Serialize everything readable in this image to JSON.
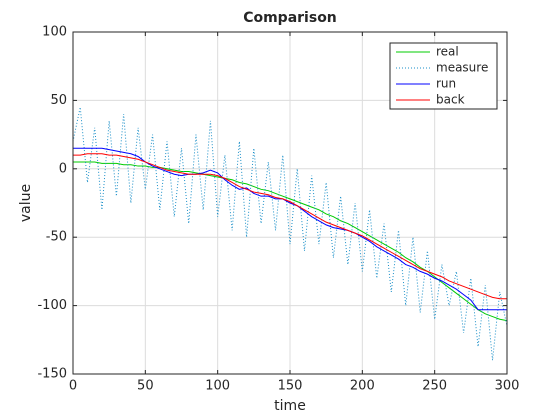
{
  "chart_data": {
    "type": "line",
    "title": "Comparison",
    "xlabel": "time",
    "ylabel": "value",
    "x": [
      0,
      5,
      10,
      15,
      20,
      25,
      30,
      35,
      40,
      45,
      50,
      55,
      60,
      65,
      70,
      75,
      80,
      85,
      90,
      95,
      100,
      105,
      110,
      115,
      120,
      125,
      130,
      135,
      140,
      145,
      150,
      155,
      160,
      165,
      170,
      175,
      180,
      185,
      190,
      195,
      200,
      205,
      210,
      215,
      220,
      225,
      230,
      235,
      240,
      245,
      250,
      255,
      260,
      265,
      270,
      275,
      280,
      285,
      290,
      295,
      300
    ],
    "series": [
      {
        "name": "real",
        "color": "#00cc00",
        "style": "solid",
        "values": [
          5,
          5,
          5,
          5,
          4,
          4,
          4,
          3,
          3,
          2,
          2,
          1,
          1,
          0,
          -1,
          -2,
          -2,
          -3,
          -4,
          -5,
          -6,
          -7,
          -8,
          -10,
          -11,
          -13,
          -15,
          -16,
          -18,
          -20,
          -22,
          -24,
          -26,
          -28,
          -30,
          -33,
          -35,
          -38,
          -40,
          -43,
          -46,
          -49,
          -52,
          -55,
          -58,
          -61,
          -65,
          -68,
          -72,
          -75,
          -79,
          -83,
          -87,
          -91,
          -95,
          -99,
          -103,
          -106,
          -108,
          -110,
          -111
        ]
      },
      {
        "name": "measure",
        "color": "#1a8fc8",
        "style": "dotted",
        "values": [
          20,
          45,
          -10,
          30,
          -30,
          35,
          -20,
          40,
          -25,
          30,
          -15,
          25,
          -30,
          20,
          -35,
          15,
          -40,
          25,
          -30,
          35,
          -35,
          10,
          -45,
          20,
          -50,
          15,
          -40,
          5,
          -45,
          10,
          -55,
          0,
          -60,
          -5,
          -55,
          -10,
          -65,
          -20,
          -70,
          -25,
          -75,
          -30,
          -80,
          -40,
          -90,
          -45,
          -100,
          -50,
          -105,
          -60,
          -110,
          -70,
          -100,
          -75,
          -120,
          -80,
          -130,
          -85,
          -140,
          -90,
          -115
        ]
      },
      {
        "name": "run",
        "color": "#0000ff",
        "style": "solid",
        "values": [
          15,
          15,
          15,
          15,
          15,
          14,
          13,
          12,
          11,
          9,
          5,
          2,
          0,
          -2,
          -4,
          -5,
          -4,
          -4,
          -3,
          -1,
          -3,
          -8,
          -12,
          -15,
          -14,
          -18,
          -20,
          -20,
          -22,
          -22,
          -25,
          -27,
          -31,
          -35,
          -38,
          -41,
          -43,
          -44,
          -45,
          -47,
          -50,
          -53,
          -57,
          -60,
          -63,
          -66,
          -70,
          -72,
          -75,
          -77,
          -80,
          -82,
          -85,
          -88,
          -92,
          -96,
          -103,
          -103,
          -103,
          -103,
          -103
        ]
      },
      {
        "name": "back",
        "color": "#ff0000",
        "style": "solid",
        "values": [
          10,
          10,
          11,
          11,
          11,
          10,
          10,
          9,
          8,
          7,
          5,
          3,
          1,
          -1,
          -2,
          -3,
          -4,
          -4,
          -4,
          -4,
          -5,
          -7,
          -10,
          -13,
          -15,
          -17,
          -18,
          -19,
          -21,
          -22,
          -24,
          -27,
          -30,
          -33,
          -36,
          -39,
          -41,
          -43,
          -45,
          -47,
          -49,
          -52,
          -55,
          -58,
          -61,
          -64,
          -67,
          -70,
          -73,
          -75,
          -77,
          -79,
          -82,
          -84,
          -86,
          -88,
          -90,
          -92,
          -94,
          -95,
          -95
        ]
      }
    ],
    "xlim": [
      0,
      300
    ],
    "xticks": [
      0,
      50,
      100,
      150,
      200,
      250,
      300
    ],
    "ylim": [
      -150,
      100
    ],
    "yticks": [
      -150,
      -100,
      -50,
      0,
      50,
      100
    ],
    "grid": true,
    "legend": "northeast"
  }
}
